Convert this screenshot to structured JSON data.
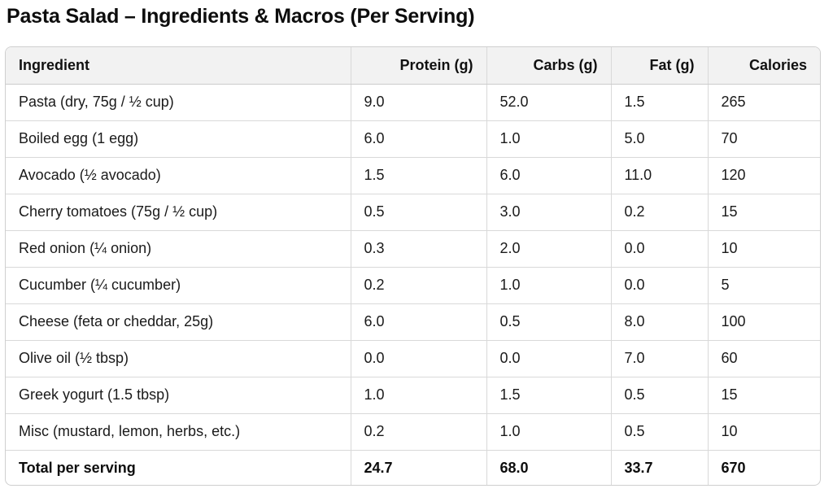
{
  "title": "Pasta Salad – Ingredients & Macros (Per Serving)",
  "table": {
    "headers": [
      "Ingredient",
      "Protein (g)",
      "Carbs (g)",
      "Fat (g)",
      "Calories"
    ],
    "rows": [
      [
        "Pasta (dry, 75g / ½ cup)",
        "9.0",
        "52.0",
        "1.5",
        "265"
      ],
      [
        "Boiled egg (1 egg)",
        "6.0",
        "1.0",
        "5.0",
        "70"
      ],
      [
        "Avocado (½ avocado)",
        "1.5",
        "6.0",
        "11.0",
        "120"
      ],
      [
        "Cherry tomatoes (75g / ½ cup)",
        "0.5",
        "3.0",
        "0.2",
        "15"
      ],
      [
        "Red onion (¼ onion)",
        "0.3",
        "2.0",
        "0.0",
        "10"
      ],
      [
        "Cucumber (¼ cucumber)",
        "0.2",
        "1.0",
        "0.0",
        "5"
      ],
      [
        "Cheese (feta or cheddar, 25g)",
        "6.0",
        "0.5",
        "8.0",
        "100"
      ],
      [
        "Olive oil (½ tbsp)",
        "0.0",
        "0.0",
        "7.0",
        "60"
      ],
      [
        "Greek yogurt (1.5 tbsp)",
        "1.0",
        "1.5",
        "0.5",
        "15"
      ],
      [
        "Misc (mustard, lemon, herbs, etc.)",
        "0.2",
        "1.0",
        "0.5",
        "10"
      ]
    ],
    "total": [
      "Total per serving",
      "24.7",
      "68.0",
      "33.7",
      "670"
    ]
  }
}
